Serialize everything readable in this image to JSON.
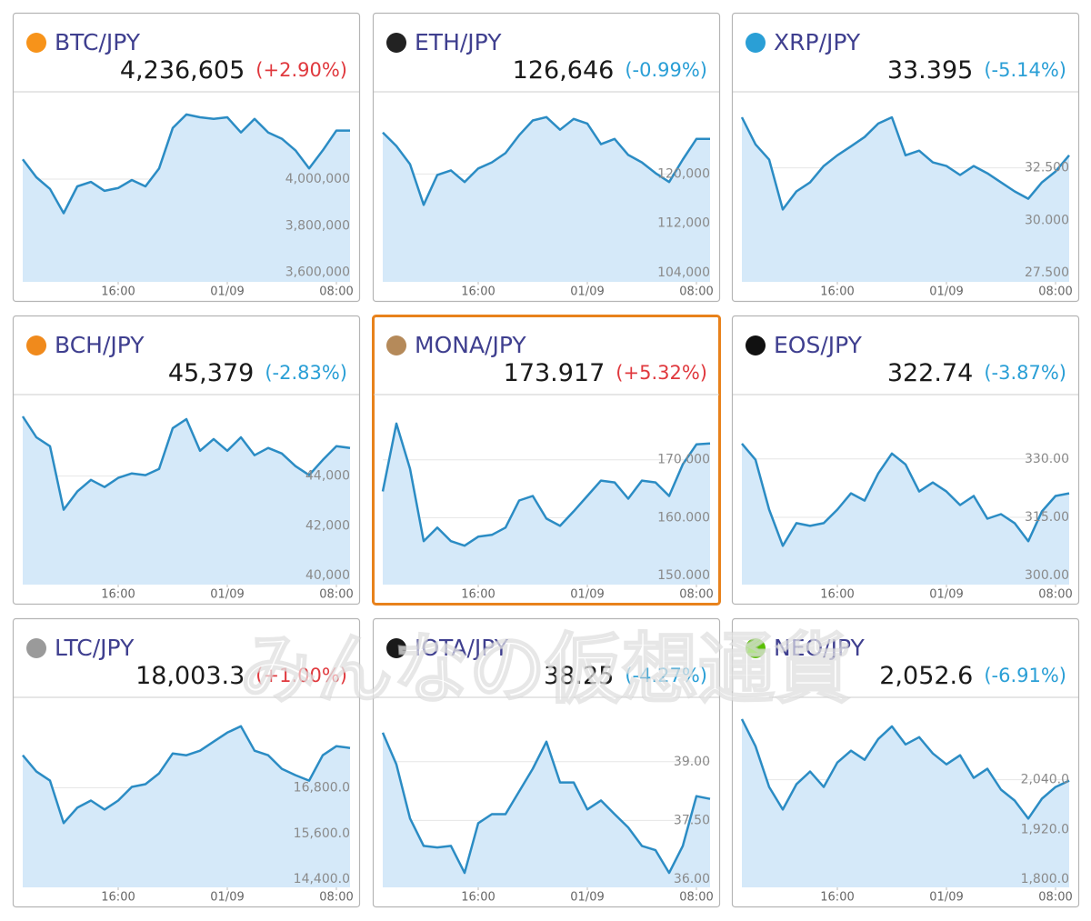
{
  "watermark": "みんなの仮想通貨",
  "chart_data": [
    {
      "type": "line",
      "title": "BTC/JPY",
      "price": "4,236,605",
      "change": "(+2.90%)",
      "change_color": "#e0393e",
      "icon_color": "#f7931a",
      "color": "#2b8cc4",
      "fill": "#d5e9f9",
      "values": [
        4085000,
        4008000,
        3958000,
        3854000,
        3969000,
        3988000,
        3950000,
        3962000,
        3996000,
        3969000,
        4046000,
        4219000,
        4277000,
        4265000,
        4258000,
        4265000,
        4200000,
        4258000,
        4200000,
        4173000,
        4123000,
        4046000,
        4123000,
        4208000,
        4208000
      ],
      "xlim": [
        0,
        24
      ],
      "xticks": [
        {
          "value": 7,
          "label": "16:00"
        },
        {
          "value": 15,
          "label": "01/09"
        },
        {
          "value": 23,
          "label": "08:00"
        }
      ],
      "ylim": [
        3560000,
        4370000
      ],
      "yticks": [
        {
          "value": 3600000,
          "label": "3,600,000"
        },
        {
          "value": 3800000,
          "label": "3,800,000"
        },
        {
          "value": 4000000,
          "label": "4,000,000"
        }
      ]
    },
    {
      "type": "line",
      "title": "ETH/JPY",
      "price": "126,646",
      "change": "(-0.99%)",
      "change_color": "#2a9fd6",
      "icon_color": "#222222",
      "color": "#2b8cc4",
      "fill": "#d5e9f9",
      "values": [
        126750,
        124550,
        121600,
        115000,
        119850,
        120600,
        118700,
        120900,
        121900,
        123400,
        126300,
        128700,
        129250,
        127200,
        128950,
        128200,
        124850,
        125700,
        123100,
        121900,
        120150,
        118700,
        122350,
        125700,
        125700
      ],
      "xlim": [
        0,
        24
      ],
      "xticks": [
        {
          "value": 7,
          "label": "16:00"
        },
        {
          "value": 15,
          "label": "01/09"
        },
        {
          "value": 23,
          "label": "08:00"
        }
      ],
      "ylim": [
        102500,
        133200
      ],
      "yticks": [
        {
          "value": 104000,
          "label": "104,000"
        },
        {
          "value": 112000,
          "label": "112,000"
        },
        {
          "value": 120000,
          "label": "120,000"
        }
      ]
    },
    {
      "type": "line",
      "title": "XRP/JPY",
      "price": "33.395",
      "change": "(-5.14%)",
      "change_color": "#2a9fd6",
      "icon_color": "#2a9fd6",
      "color": "#2b8cc4",
      "fill": "#d5e9f9",
      "values": [
        34.91,
        33.62,
        32.89,
        30.52,
        31.38,
        31.81,
        32.59,
        33.1,
        33.53,
        33.97,
        34.61,
        34.91,
        33.1,
        33.32,
        32.76,
        32.59,
        32.16,
        32.59,
        32.24,
        31.81,
        31.38,
        31.03,
        31.81,
        32.33,
        33.1
      ],
      "xlim": [
        0,
        24
      ],
      "xticks": [
        {
          "value": 7,
          "label": "16:00"
        },
        {
          "value": 15,
          "label": "01/09"
        },
        {
          "value": 23,
          "label": "08:00"
        }
      ],
      "ylim": [
        27.07,
        36.08
      ],
      "yticks": [
        {
          "value": 27.5,
          "label": "27.500"
        },
        {
          "value": 30,
          "label": "30.000"
        },
        {
          "value": 32.5,
          "label": "32.500"
        }
      ]
    },
    {
      "type": "line",
      "title": "BCH/JPY",
      "price": "45,379",
      "change": "(-2.83%)",
      "change_color": "#2a9fd6",
      "icon_color": "#f08a1c",
      "color": "#2b8cc4",
      "fill": "#d5e9f9",
      "values": [
        46400,
        45560,
        45200,
        42650,
        43380,
        43850,
        43560,
        43930,
        44110,
        44040,
        44290,
        45930,
        46290,
        45020,
        45490,
        45020,
        45560,
        44840,
        45130,
        44910,
        44400,
        44040,
        44650,
        45200,
        45130
      ],
      "xlim": [
        0,
        24
      ],
      "xticks": [
        {
          "value": 7,
          "label": "16:00"
        },
        {
          "value": 15,
          "label": "01/09"
        },
        {
          "value": 23,
          "label": "08:00"
        }
      ],
      "ylim": [
        39640,
        47240
      ],
      "yticks": [
        {
          "value": 40000,
          "label": "40,000"
        },
        {
          "value": 42000,
          "label": "42,000"
        },
        {
          "value": 44000,
          "label": "44,000"
        }
      ]
    },
    {
      "type": "line",
      "title": "MONA/JPY",
      "price": "173.917",
      "change": "(+5.32%)",
      "change_color": "#e0393e",
      "icon_color": "#b58a5a",
      "color": "#2b8cc4",
      "fill": "#d5e9f9",
      "highlight": true,
      "values": [
        164.53,
        176.25,
        168.44,
        155.94,
        158.28,
        155.94,
        155.16,
        156.72,
        157.03,
        158.28,
        162.97,
        163.75,
        159.84,
        158.59,
        161.09,
        163.75,
        166.41,
        166.09,
        163.28,
        166.41,
        166.09,
        163.75,
        169.22,
        172.66,
        172.81
      ],
      "xlim": [
        0,
        24
      ],
      "xticks": [
        {
          "value": 7,
          "label": "16:00"
        },
        {
          "value": 15,
          "label": "01/09"
        },
        {
          "value": 23,
          "label": "08:00"
        }
      ],
      "ylim": [
        148.44,
        181.1
      ],
      "yticks": [
        {
          "value": 150,
          "label": "150.000"
        },
        {
          "value": 160,
          "label": "160.000"
        },
        {
          "value": 170,
          "label": "170.000"
        }
      ]
    },
    {
      "type": "line",
      "title": "EOS/JPY",
      "price": "322.74",
      "change": "(-3.87%)",
      "change_color": "#2a9fd6",
      "icon_color": "#111111",
      "color": "#2b8cc4",
      "fill": "#d5e9f9",
      "values": [
        333.95,
        329.77,
        316.98,
        307.67,
        313.49,
        312.79,
        313.49,
        316.98,
        321.16,
        319.3,
        326.28,
        331.4,
        328.6,
        321.63,
        323.95,
        321.63,
        318.14,
        320.47,
        314.65,
        315.81,
        313.49,
        308.84,
        316.51,
        320.47,
        321.16
      ],
      "xlim": [
        0,
        24
      ],
      "xticks": [
        {
          "value": 7,
          "label": "16:00"
        },
        {
          "value": 15,
          "label": "01/09"
        },
        {
          "value": 23,
          "label": "08:00"
        }
      ],
      "ylim": [
        297.7,
        346.3
      ],
      "yticks": [
        {
          "value": 300,
          "label": "300.00"
        },
        {
          "value": 315,
          "label": "315.00"
        },
        {
          "value": 330,
          "label": "330.00"
        }
      ]
    },
    {
      "type": "line",
      "title": "LTC/JPY",
      "price": "18,003.3",
      "change": "(+1.00%)",
      "change_color": "#e0393e",
      "icon_color": "#9a9a9a",
      "color": "#2b8cc4",
      "fill": "#d5e9f9",
      "values": [
        17655,
        17228,
        16990,
        15873,
        16277,
        16467,
        16230,
        16467,
        16824,
        16895,
        17180,
        17703,
        17655,
        17774,
        18012,
        18249,
        18416,
        17774,
        17655,
        17299,
        17133,
        16990,
        17655,
        17893,
        17845
      ],
      "xlim": [
        0,
        24
      ],
      "xticks": [
        {
          "value": 7,
          "label": "16:00"
        },
        {
          "value": 15,
          "label": "01/09"
        },
        {
          "value": 23,
          "label": "08:00"
        }
      ],
      "ylim": [
        14186,
        19152
      ],
      "yticks": [
        {
          "value": 14400,
          "label": "14,400.0"
        },
        {
          "value": 15600,
          "label": "15,600.0"
        },
        {
          "value": 16800,
          "label": "16,800.0"
        }
      ]
    },
    {
      "type": "line",
      "title": "IOTA/JPY",
      "price": "38.25",
      "change": "(-4.27%)",
      "change_color": "#2a9fd6",
      "icon_color": "#1a1a1a",
      "color": "#2b8cc4",
      "fill": "#d5e9f9",
      "values": [
        39.74,
        38.93,
        37.55,
        36.85,
        36.81,
        36.85,
        36.16,
        37.43,
        37.66,
        37.66,
        38.24,
        38.82,
        39.51,
        38.47,
        38.47,
        37.78,
        38.01,
        37.66,
        37.32,
        36.85,
        36.74,
        36.16,
        36.85,
        38.12,
        38.05
      ],
      "xlim": [
        0,
        24
      ],
      "xticks": [
        {
          "value": 7,
          "label": "16:00"
        },
        {
          "value": 15,
          "label": "01/09"
        },
        {
          "value": 23,
          "label": "08:00"
        }
      ],
      "ylim": [
        35.79,
        40.62
      ],
      "yticks": [
        {
          "value": 36,
          "label": "36.00"
        },
        {
          "value": 37.5,
          "label": "37.50"
        },
        {
          "value": 39,
          "label": "39.00"
        }
      ]
    },
    {
      "type": "line",
      "title": "NEO/JPY",
      "price": "2,052.6",
      "change": "(-6.91%)",
      "change_color": "#2a9fd6",
      "icon_color": "#58bf00",
      "color": "#2b8cc4",
      "fill": "#d5e9f9",
      "values": [
        2186.2,
        2120.7,
        2022.5,
        1968.0,
        2029.1,
        2059.6,
        2022.5,
        2081.5,
        2109.8,
        2088.0,
        2138.2,
        2168.7,
        2125.1,
        2142.6,
        2103.3,
        2077.1,
        2098.9,
        2044.4,
        2066.2,
        2016.0,
        1989.8,
        1946.2,
        1994.2,
        2022.5,
        2037.8
      ],
      "xlim": [
        0,
        24
      ],
      "xticks": [
        {
          "value": 7,
          "label": "16:00"
        },
        {
          "value": 15,
          "label": "01/09"
        },
        {
          "value": 23,
          "label": "08:00"
        }
      ],
      "ylim": [
        1780.4,
        2236.4
      ],
      "yticks": [
        {
          "value": 1800,
          "label": "1,800.0"
        },
        {
          "value": 1920,
          "label": "1,920.0"
        },
        {
          "value": 2040,
          "label": "2,040.0"
        }
      ]
    }
  ]
}
